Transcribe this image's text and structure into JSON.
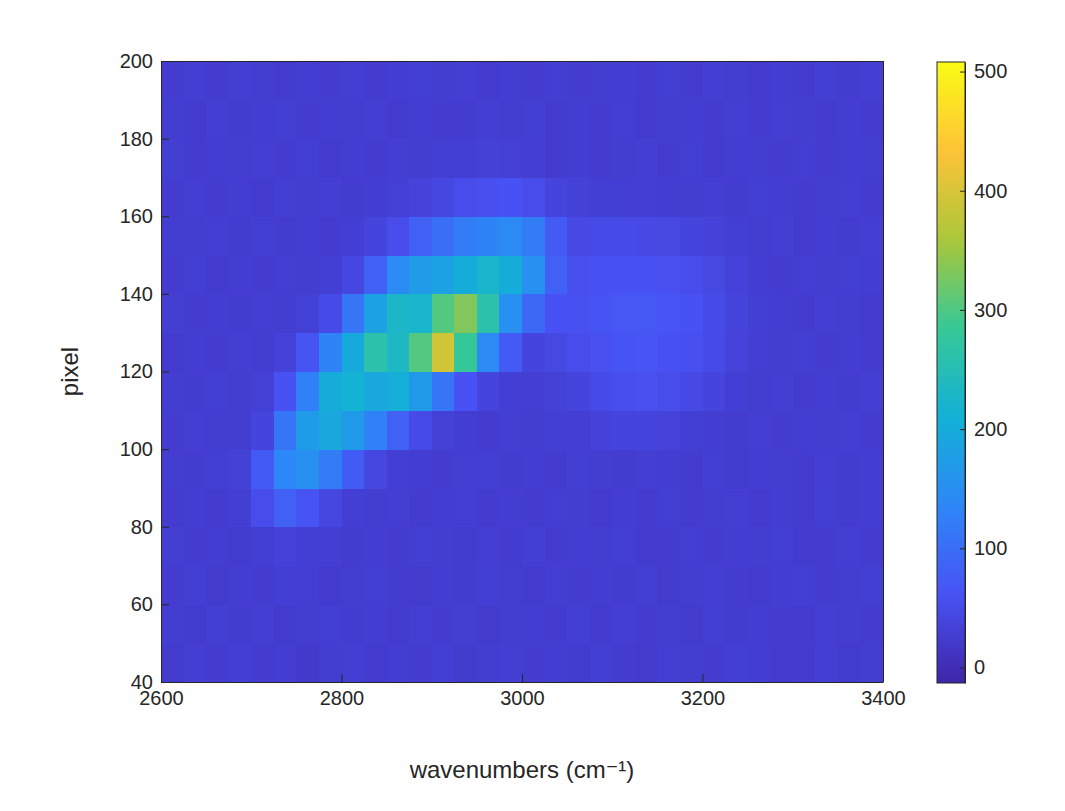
{
  "chart_data": {
    "type": "heatmap",
    "xlabel": "wavenumbers (cm⁻¹)",
    "ylabel": "pixel",
    "x": [
      2612.5,
      2637.5,
      2662.5,
      2687.5,
      2712.5,
      2737.5,
      2762.5,
      2787.5,
      2812.5,
      2837.5,
      2862.5,
      2887.5,
      2912.5,
      2937.5,
      2962.5,
      2987.5,
      3012.5,
      3037.5,
      3062.5,
      3087.5,
      3112.5,
      3137.5,
      3162.5,
      3187.5,
      3212.5,
      3237.5,
      3262.5,
      3287.5,
      3312.5,
      3337.5,
      3362.5,
      3387.5
    ],
    "y": [
      45,
      55,
      65,
      75,
      85,
      95,
      105,
      115,
      125,
      135,
      145,
      155,
      165,
      175,
      185,
      195
    ],
    "values": [
      [
        22,
        28,
        25,
        30,
        24,
        27,
        21,
        26,
        29,
        23,
        27,
        25,
        30,
        22,
        26,
        28,
        24,
        27,
        23,
        29,
        25,
        22,
        28,
        26,
        24,
        30,
        27,
        23,
        25,
        28,
        22,
        26
      ],
      [
        27,
        23,
        29,
        25,
        28,
        22,
        26,
        30,
        24,
        27,
        23,
        28,
        25,
        29,
        22,
        26,
        27,
        24,
        30,
        23,
        28,
        25,
        26,
        22,
        29,
        24,
        27,
        25,
        23,
        28,
        26,
        24
      ],
      [
        24,
        29,
        22,
        27,
        25,
        30,
        28,
        23,
        26,
        29,
        25,
        22,
        27,
        24,
        30,
        26,
        23,
        28,
        25,
        27,
        24,
        29,
        22,
        26,
        28,
        25,
        23,
        27,
        30,
        24,
        26,
        29
      ],
      [
        28,
        25,
        27,
        23,
        29,
        34,
        30,
        28,
        25,
        27,
        24,
        29,
        26,
        23,
        28,
        25,
        30,
        24,
        27,
        26,
        29,
        23,
        25,
        28,
        24,
        27,
        26,
        30,
        23,
        25,
        28,
        24
      ],
      [
        25,
        27,
        24,
        30,
        52,
        82,
        64,
        42,
        30,
        26,
        28,
        24,
        27,
        29,
        25,
        27,
        24,
        28,
        26,
        23,
        27,
        25,
        29,
        24,
        26,
        28,
        23,
        27,
        25,
        29,
        24,
        27
      ],
      [
        26,
        24,
        29,
        32,
        72,
        138,
        152,
        122,
        74,
        42,
        30,
        27,
        25,
        28,
        30,
        24,
        27,
        25,
        29,
        26,
        24,
        28,
        27,
        25,
        30,
        23,
        27,
        26,
        24,
        28,
        25,
        27
      ],
      [
        24,
        28,
        26,
        27,
        40,
        112,
        172,
        192,
        168,
        128,
        82,
        50,
        33,
        27,
        25,
        29,
        26,
        30,
        28,
        35,
        38,
        40,
        36,
        30,
        27,
        25,
        28,
        24,
        27,
        26,
        29,
        25
      ],
      [
        27,
        25,
        30,
        26,
        31,
        62,
        128,
        202,
        214,
        192,
        205,
        168,
        112,
        62,
        38,
        30,
        28,
        32,
        40,
        48,
        55,
        58,
        54,
        46,
        38,
        30,
        26,
        28,
        25,
        27,
        24,
        28
      ],
      [
        23,
        27,
        25,
        29,
        26,
        34,
        64,
        132,
        198,
        262,
        232,
        302,
        392,
        282,
        142,
        72,
        40,
        44,
        52,
        58,
        64,
        66,
        62,
        56,
        48,
        36,
        28,
        26,
        29,
        24,
        27,
        25
      ],
      [
        28,
        24,
        27,
        25,
        28,
        26,
        32,
        48,
        112,
        182,
        228,
        222,
        302,
        332,
        262,
        152,
        92,
        60,
        58,
        64,
        68,
        70,
        66,
        60,
        50,
        38,
        29,
        27,
        24,
        28,
        26,
        23
      ],
      [
        25,
        29,
        23,
        27,
        24,
        28,
        26,
        30,
        42,
        82,
        142,
        172,
        182,
        202,
        222,
        202,
        152,
        82,
        56,
        60,
        62,
        62,
        58,
        52,
        44,
        34,
        27,
        25,
        28,
        26,
        29,
        27
      ],
      [
        27,
        26,
        28,
        24,
        29,
        25,
        27,
        24,
        30,
        38,
        52,
        82,
        102,
        122,
        132,
        142,
        122,
        72,
        46,
        48,
        48,
        46,
        44,
        40,
        34,
        29,
        26,
        28,
        24,
        27,
        25,
        28
      ],
      [
        24,
        28,
        25,
        27,
        23,
        29,
        26,
        28,
        25,
        27,
        31,
        36,
        42,
        52,
        56,
        62,
        52,
        40,
        32,
        30,
        29,
        28,
        27,
        26,
        28,
        24,
        29,
        27,
        25,
        26,
        28,
        24
      ],
      [
        29,
        25,
        27,
        26,
        28,
        24,
        30,
        23,
        27,
        25,
        28,
        26,
        29,
        30,
        32,
        31,
        28,
        25,
        27,
        24,
        26,
        28,
        25,
        29,
        23,
        27,
        26,
        24,
        28,
        25,
        27,
        26
      ],
      [
        26,
        23,
        28,
        25,
        27,
        29,
        24,
        27,
        26,
        28,
        23,
        27,
        25,
        24,
        28,
        26,
        29,
        24,
        27,
        25,
        28,
        23,
        26,
        27,
        25,
        29,
        24,
        28,
        26,
        23,
        27,
        25
      ],
      [
        25,
        28,
        24,
        29,
        26,
        23,
        27,
        25,
        28,
        24,
        27,
        29,
        26,
        28,
        23,
        27,
        25,
        28,
        24,
        26,
        27,
        25,
        29,
        24,
        28,
        26,
        23,
        27,
        25,
        29,
        24,
        28
      ]
    ],
    "xlim": [
      2600,
      3400
    ],
    "ylim": [
      40,
      200
    ],
    "xticks": [
      2600,
      2800,
      3000,
      3200,
      3400
    ],
    "yticks": [
      40,
      60,
      80,
      100,
      120,
      140,
      160,
      180,
      200
    ],
    "colorbar": {
      "range": [
        -13,
        508
      ],
      "ticks": [
        0,
        100,
        200,
        300,
        400,
        500
      ]
    }
  }
}
